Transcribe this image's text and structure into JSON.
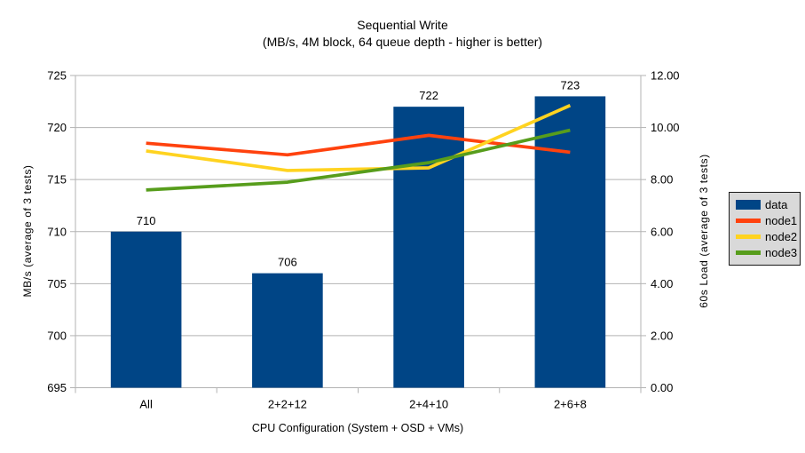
{
  "chart_data": {
    "type": "bar+line",
    "title": "Sequential Write",
    "subtitle": "(MB/s, 4M block, 64 queue depth - higher is better)",
    "categories": [
      "All",
      "2+2+12",
      "2+4+10",
      "2+6+8"
    ],
    "xlabel": "CPU Configuration (System + OSD + VMs)",
    "axes": {
      "left": {
        "label": "MB/s (average of 3 tests)",
        "min": 695,
        "max": 725,
        "step": 5,
        "ticks": [
          "695",
          "700",
          "705",
          "710",
          "715",
          "720",
          "725"
        ]
      },
      "right": {
        "label": "60s Load (average of 3 tests)",
        "min": 0,
        "max": 12,
        "step": 2,
        "ticks": [
          "0.00",
          "2.00",
          "4.00",
          "6.00",
          "8.00",
          "10.00",
          "12.00"
        ]
      }
    },
    "grid": true,
    "legend": {
      "position": "right",
      "entries": [
        "data",
        "node1",
        "node2",
        "node3"
      ]
    },
    "series": [
      {
        "name": "data",
        "mark": "bar",
        "axis": "left",
        "color": "#004586",
        "values": [
          710,
          706,
          722,
          723
        ],
        "data_labels": [
          "710",
          "706",
          "722",
          "723"
        ]
      },
      {
        "name": "node1",
        "mark": "line",
        "axis": "right",
        "color": "#ff420e",
        "values": [
          9.4,
          8.95,
          9.7,
          9.05
        ]
      },
      {
        "name": "node2",
        "mark": "line",
        "axis": "right",
        "color": "#ffd320",
        "values": [
          9.1,
          8.35,
          8.45,
          10.85
        ]
      },
      {
        "name": "node3",
        "mark": "line",
        "axis": "right",
        "color": "#579d1c",
        "values": [
          7.6,
          7.9,
          8.65,
          9.9
        ]
      }
    ]
  },
  "style": {
    "background": "#ffffff",
    "grid_color": "#b3b3b3",
    "axis_color": "#b3b3b3",
    "text_color": "#000000",
    "legend_bg": "#d9d9d9",
    "legend_border": "#1a1a1a"
  }
}
